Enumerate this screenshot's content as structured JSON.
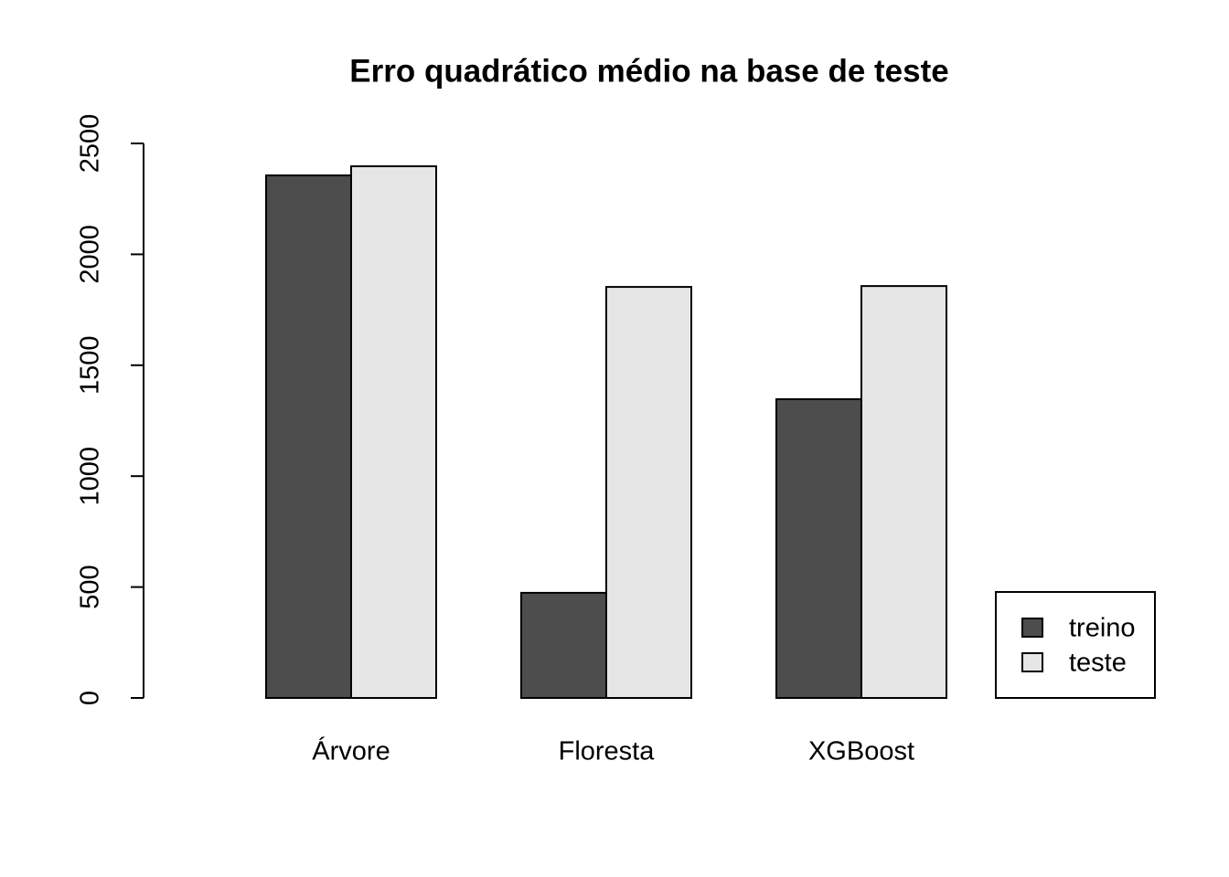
{
  "chart_data": {
    "type": "bar",
    "title": "Erro quadrático médio na base de teste",
    "categories": [
      "Árvore",
      "Floresta",
      "XGBoost"
    ],
    "series": [
      {
        "name": "treino",
        "color": "#4d4d4d",
        "values": [
          2356,
          474,
          1347
        ]
      },
      {
        "name": "teste",
        "color": "#e6e6e6",
        "values": [
          2397,
          1853,
          1857
        ]
      }
    ],
    "ylim": [
      0,
      2500
    ],
    "yticks": [
      0,
      500,
      1000,
      1500,
      2000,
      2500
    ],
    "legend": "bottomright"
  }
}
